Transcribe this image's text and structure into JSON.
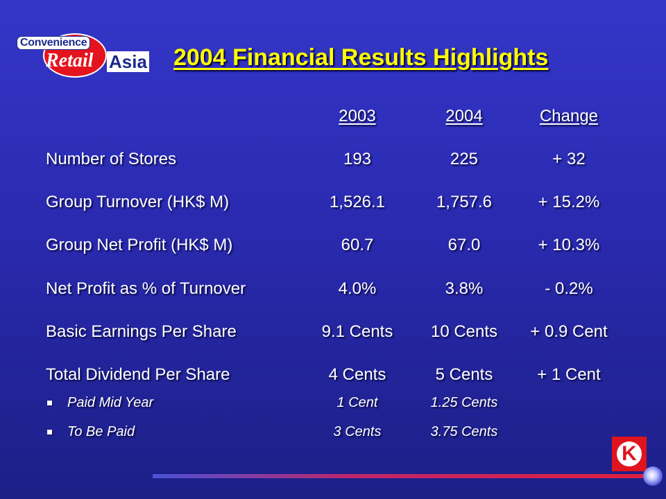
{
  "logo": {
    "convenience": "Convenience",
    "retail": "Retail",
    "asia": "Asia"
  },
  "title": "2004 Financial Results Highlights",
  "columns": [
    "2003",
    "2004",
    "Change"
  ],
  "rows": [
    {
      "label": "Number of Stores",
      "v2003": "193",
      "v2004": "225",
      "change": "+ 32"
    },
    {
      "label": "Group Turnover (HK$ M)",
      "v2003": "1,526.1",
      "v2004": "1,757.6",
      "change": "+ 15.2%"
    },
    {
      "label": "Group Net Profit (HK$ M)",
      "v2003": "60.7",
      "v2004": "67.0",
      "change": "+ 10.3%"
    },
    {
      "label": "Net Profit as % of Turnover",
      "v2003": "4.0%",
      "v2004": "3.8%",
      "change": "- 0.2%"
    },
    {
      "label": "Basic Earnings Per Share",
      "v2003": "9.1 Cents",
      "v2004": "10 Cents",
      "change": "+ 0.9 Cent"
    },
    {
      "label": "Total Dividend Per Share",
      "v2003": "4 Cents",
      "v2004": "5 Cents",
      "change": "+ 1 Cent"
    }
  ],
  "subrows": [
    {
      "label": "Paid Mid Year",
      "v2003": "1 Cent",
      "v2004": "1.25 Cents"
    },
    {
      "label": "To Be Paid",
      "v2003": "3 Cents",
      "v2004": "3.75 Cents"
    }
  ],
  "corner_logo": {
    "letter": "K"
  }
}
